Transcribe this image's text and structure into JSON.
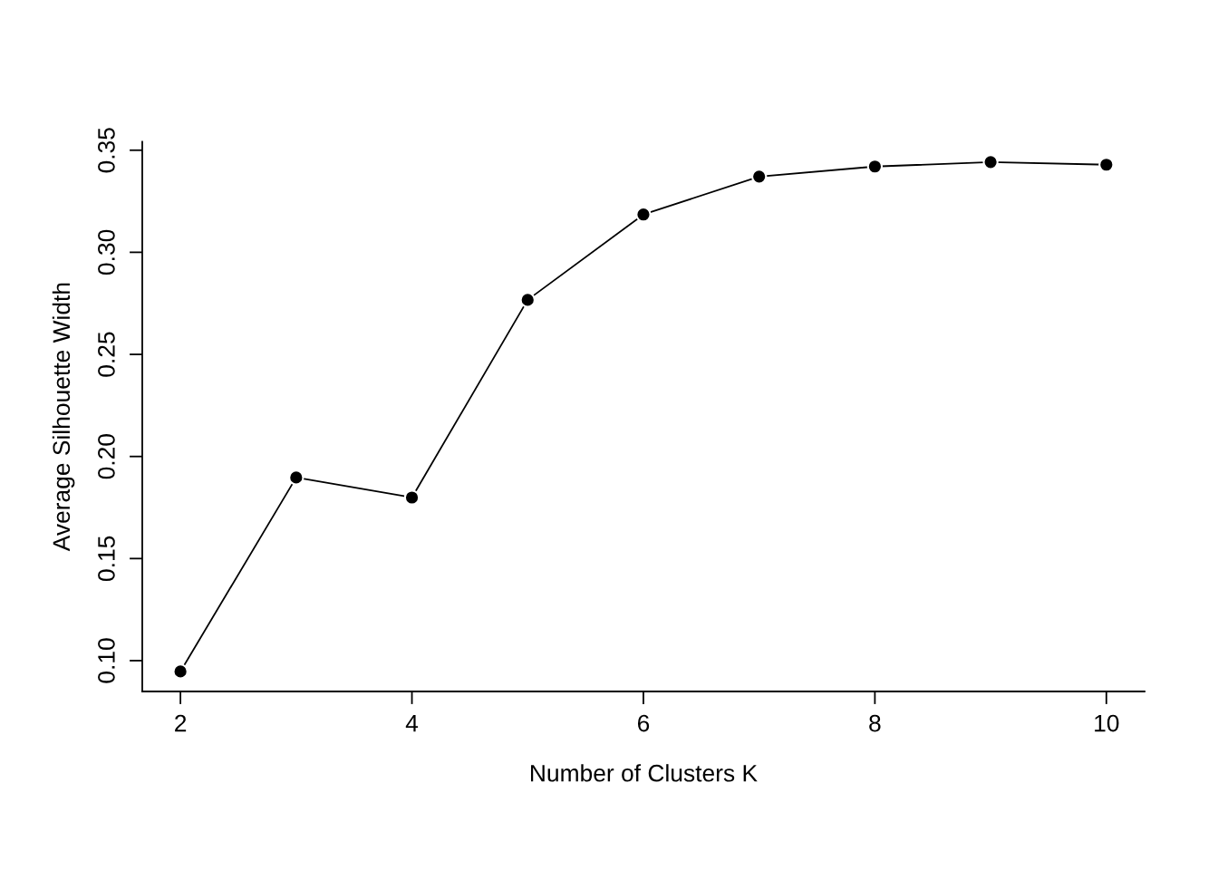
{
  "chart_data": {
    "type": "line",
    "xlabel": "Number of Clusters K",
    "ylabel": "Average Silhouette Width",
    "x": [
      2,
      3,
      4,
      5,
      6,
      7,
      8,
      9,
      10
    ],
    "series": [
      {
        "color": "#000000",
        "values": [
          0.0947,
          0.1897,
          0.1799,
          0.2767,
          0.3185,
          0.3371,
          0.342,
          0.3442,
          0.3429
        ]
      }
    ],
    "marker": "circle",
    "line_style": "solid",
    "grid": false,
    "legend": false,
    "xlim": [
      1.67,
      10.33
    ],
    "ylim": [
      0.0849,
      0.3542
    ],
    "xticks": [
      2,
      4,
      6,
      8,
      10
    ],
    "yticks": [
      {
        "value": 0.1,
        "label": "0.10"
      },
      {
        "value": 0.15,
        "label": "0.15"
      },
      {
        "value": 0.2,
        "label": "0.20"
      },
      {
        "value": 0.25,
        "label": "0.25"
      },
      {
        "value": 0.3,
        "label": "0.30"
      },
      {
        "value": 0.35,
        "label": "0.35"
      }
    ]
  }
}
